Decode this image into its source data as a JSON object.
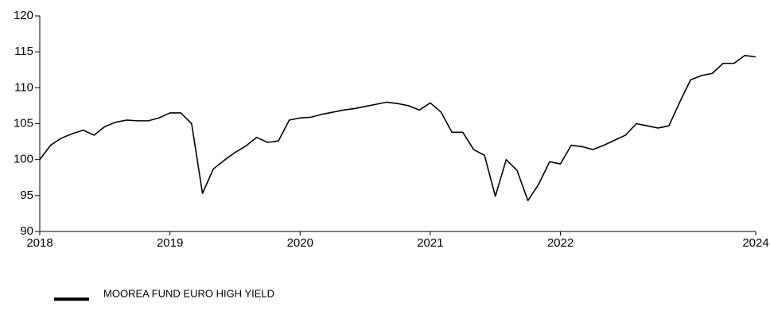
{
  "chart_data": {
    "type": "line",
    "x": [
      0,
      1,
      2,
      3,
      4,
      5,
      6,
      7,
      8,
      9,
      10,
      11,
      12,
      13,
      14,
      15,
      16,
      17,
      18,
      19,
      20,
      21,
      22,
      23,
      24,
      25,
      26,
      27,
      28,
      29,
      30,
      31,
      32,
      33,
      34,
      35,
      36,
      37,
      38,
      39,
      40,
      41,
      42,
      43,
      44,
      45,
      46,
      47,
      48,
      49,
      50,
      51,
      52,
      53,
      54,
      55,
      56,
      57,
      58,
      59,
      60,
      61,
      62,
      63,
      64,
      65,
      66
    ],
    "series": [
      {
        "name": "MOOREA FUND EURO HIGH YIELD",
        "color": "#000000",
        "values": [
          100,
          102,
          103,
          103.6,
          104.1,
          103.4,
          104.6,
          105.2,
          105.5,
          105.4,
          105.4,
          105.8,
          106.5,
          106.5,
          105,
          95.3,
          98.7,
          99.9,
          101,
          101.9,
          103.1,
          102.4,
          102.6,
          105.5,
          105.8,
          105.9,
          106.3,
          106.6,
          106.9,
          107.1,
          107.4,
          107.7,
          108,
          107.8,
          107.5,
          106.9,
          107.9,
          106.6,
          103.8,
          103.8,
          101.4,
          100.6,
          94.9,
          100,
          98.5,
          94.3,
          96.6,
          99.7,
          99.4,
          102,
          101.8,
          101.4,
          102,
          102.7,
          103.4,
          105,
          104.7,
          104.4,
          104.7,
          108,
          111.1,
          111.7,
          112,
          113.4,
          113.4,
          114.5,
          114.3
        ]
      }
    ],
    "xlim": [
      0,
      66
    ],
    "xticks": [
      {
        "value": 0,
        "label": "2018"
      },
      {
        "value": 12,
        "label": "2019"
      },
      {
        "value": 24,
        "label": "2020"
      },
      {
        "value": 36,
        "label": "2021"
      },
      {
        "value": 48,
        "label": "2022"
      },
      {
        "value": 66,
        "label": "2024"
      }
    ],
    "ylim": [
      90,
      120
    ],
    "yticks": [
      90,
      95,
      100,
      105,
      110,
      115,
      120
    ],
    "legend": "bottom-left"
  }
}
